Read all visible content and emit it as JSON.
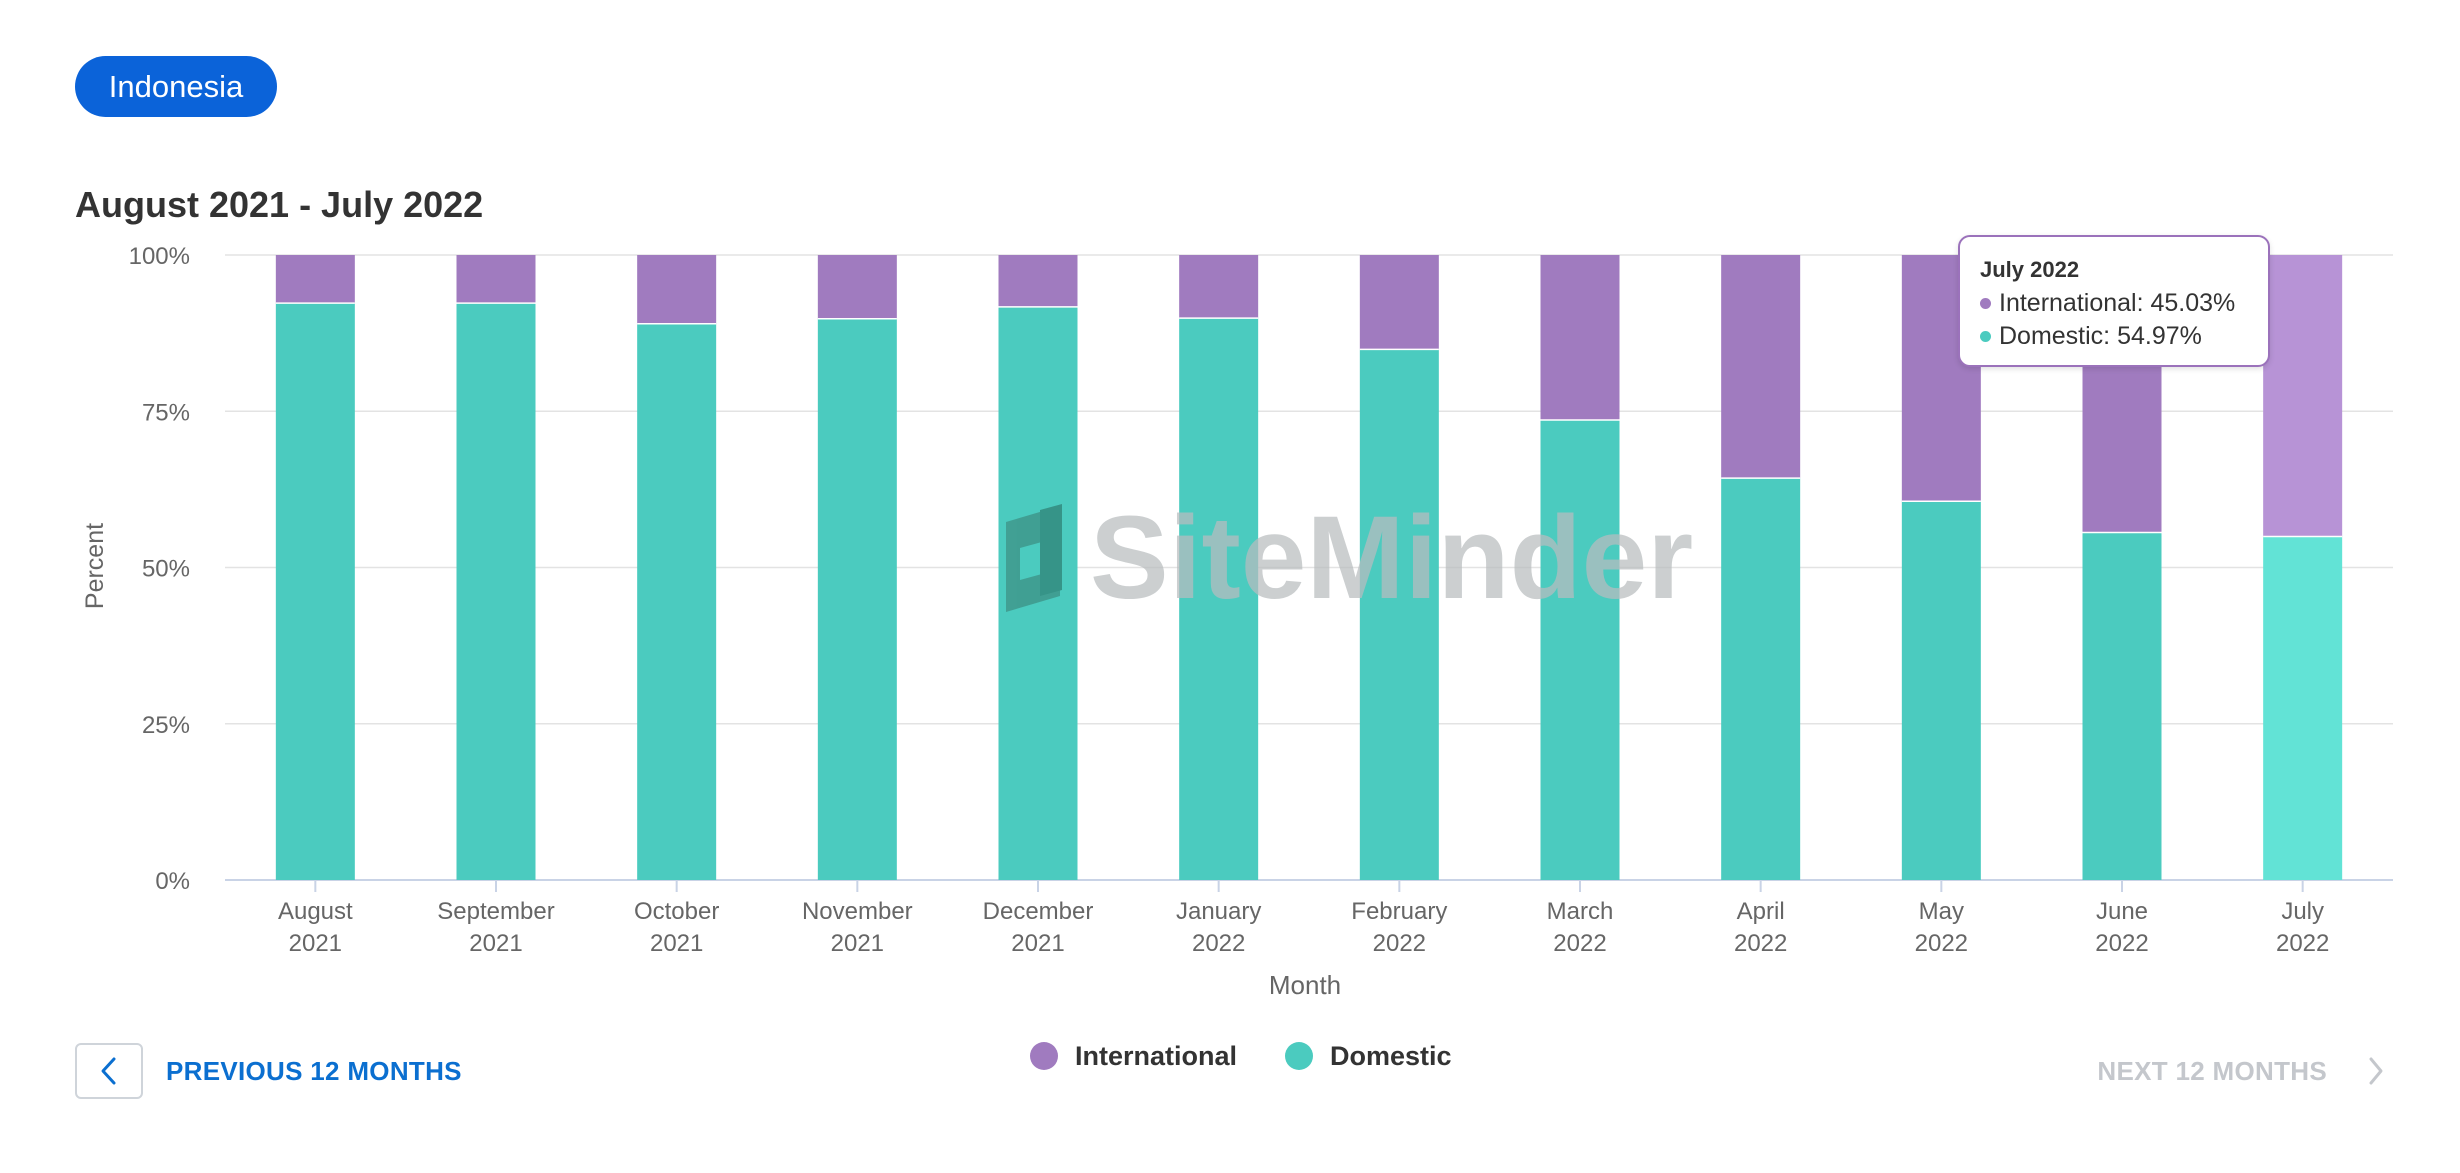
{
  "filter": {
    "country": "Indonesia"
  },
  "range_title": "August 2021 - July 2022",
  "colors": {
    "international": "#a07bbf",
    "domestic": "#4bcbbf",
    "international_highlight": "#b793d6",
    "domestic_highlight": "#62e3d6",
    "accent": "#0b63d9"
  },
  "chart_data": {
    "type": "bar",
    "stacked": true,
    "percent": true,
    "title": "",
    "xlabel": "Month",
    "ylabel": "Percent",
    "ylim": [
      0,
      100
    ],
    "yticks": [
      "0%",
      "25%",
      "50%",
      "75%",
      "100%"
    ],
    "categories": [
      [
        "August",
        "2021"
      ],
      [
        "September",
        "2021"
      ],
      [
        "October",
        "2021"
      ],
      [
        "November",
        "2021"
      ],
      [
        "December",
        "2021"
      ],
      [
        "January",
        "2022"
      ],
      [
        "February",
        "2022"
      ],
      [
        "March",
        "2022"
      ],
      [
        "April",
        "2022"
      ],
      [
        "May",
        "2022"
      ],
      [
        "June",
        "2022"
      ],
      [
        "July",
        "2022"
      ]
    ],
    "series": [
      {
        "name": "Domestic",
        "values": [
          92.3,
          92.3,
          89.0,
          89.8,
          91.7,
          89.9,
          84.9,
          73.6,
          64.3,
          60.6,
          55.6,
          54.97
        ]
      },
      {
        "name": "International",
        "values": [
          7.7,
          7.7,
          11.0,
          10.2,
          8.3,
          10.1,
          15.1,
          26.4,
          35.7,
          39.4,
          44.4,
          45.03
        ]
      }
    ],
    "legend": [
      "International",
      "Domestic"
    ],
    "legend_position": "bottom-center",
    "grid": true,
    "highlighted_index": 11
  },
  "tooltip": {
    "title": "July 2022",
    "international": "International: 45.03%",
    "domestic": "Domestic: 54.97%"
  },
  "watermark": "SiteMinder",
  "nav": {
    "prev_label": "PREVIOUS 12 MONTHS",
    "next_label": "NEXT 12 MONTHS"
  }
}
